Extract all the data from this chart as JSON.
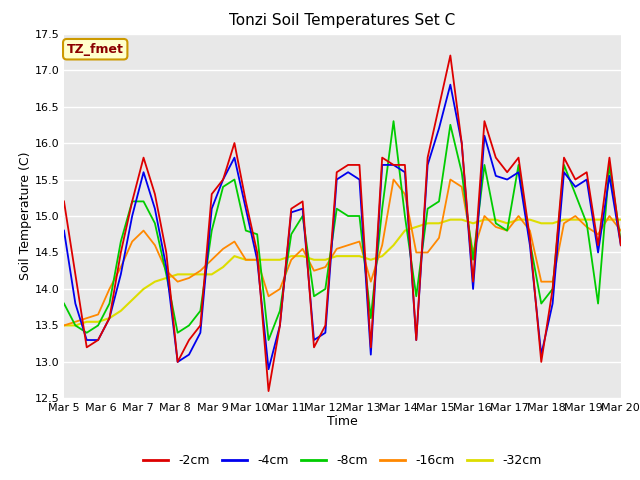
{
  "title": "Tonzi Soil Temperatures Set C",
  "xlabel": "Time",
  "ylabel": "Soil Temperature (C)",
  "ylim": [
    12.5,
    17.5
  ],
  "plot_bg_color": "#e8e8e8",
  "fig_bg_color": "#ffffff",
  "legend_label": "TZ_fmet",
  "legend_bg": "#ffffcc",
  "legend_border": "#cc9900",
  "series_colors": {
    "-2cm": "#dd0000",
    "-4cm": "#0000ee",
    "-8cm": "#00cc00",
    "-16cm": "#ff8800",
    "-32cm": "#dddd00"
  },
  "x_ticks": [
    "Mar 5",
    "Mar 6",
    "Mar 7",
    "Mar 8",
    "Mar 9",
    "Mar 10",
    "Mar 11",
    "Mar 12",
    "Mar 13",
    "Mar 14",
    "Mar 15",
    "Mar 16",
    "Mar 17",
    "Mar 18",
    "Mar 19",
    "Mar 20"
  ],
  "t_2cm": [
    15.2,
    14.2,
    13.2,
    13.3,
    13.6,
    14.5,
    15.2,
    15.8,
    15.3,
    14.5,
    13.0,
    13.3,
    13.5,
    15.3,
    15.5,
    16.0,
    15.2,
    14.5,
    12.6,
    13.5,
    15.1,
    15.2,
    13.2,
    13.5,
    15.6,
    15.7,
    15.7,
    13.2,
    15.8,
    15.7,
    15.7,
    13.3,
    15.8,
    16.5,
    17.2,
    16.0,
    14.1,
    16.3,
    15.8,
    15.6,
    15.8,
    14.7,
    13.0,
    14.0,
    15.8,
    15.5,
    15.6,
    14.6,
    15.8,
    14.6
  ],
  "t_4cm": [
    14.8,
    13.8,
    13.3,
    13.3,
    13.6,
    14.2,
    15.0,
    15.6,
    15.1,
    14.3,
    13.0,
    13.1,
    13.4,
    15.1,
    15.5,
    15.8,
    15.1,
    14.4,
    12.9,
    13.5,
    15.05,
    15.1,
    13.3,
    13.4,
    15.5,
    15.6,
    15.5,
    13.1,
    15.7,
    15.7,
    15.6,
    13.3,
    15.7,
    16.2,
    16.8,
    16.0,
    14.0,
    16.1,
    15.55,
    15.5,
    15.6,
    14.6,
    13.1,
    13.8,
    15.6,
    15.4,
    15.5,
    14.5,
    15.55,
    14.6
  ],
  "t_8cm": [
    13.8,
    13.5,
    13.4,
    13.5,
    13.8,
    14.65,
    15.2,
    15.2,
    14.9,
    14.2,
    13.4,
    13.5,
    13.7,
    14.8,
    15.4,
    15.5,
    14.8,
    14.75,
    13.3,
    13.7,
    14.75,
    15.0,
    13.9,
    14.0,
    15.1,
    15.0,
    15.0,
    13.6,
    15.1,
    16.3,
    15.0,
    13.9,
    15.1,
    15.2,
    16.25,
    15.6,
    14.4,
    15.7,
    14.9,
    14.8,
    15.7,
    14.65,
    13.8,
    14.0,
    15.7,
    15.3,
    14.9,
    13.8,
    15.7,
    14.65
  ],
  "t_16cm": [
    13.5,
    13.55,
    13.6,
    13.65,
    14.0,
    14.3,
    14.65,
    14.8,
    14.6,
    14.25,
    14.1,
    14.15,
    14.25,
    14.4,
    14.55,
    14.65,
    14.4,
    14.4,
    13.9,
    14.0,
    14.4,
    14.55,
    14.25,
    14.3,
    14.55,
    14.6,
    14.65,
    14.1,
    14.6,
    15.5,
    15.3,
    14.5,
    14.5,
    14.7,
    15.5,
    15.4,
    14.5,
    15.0,
    14.85,
    14.8,
    15.0,
    14.8,
    14.1,
    14.1,
    14.9,
    15.0,
    14.85,
    14.75,
    15.0,
    14.8
  ],
  "t_32cm": [
    13.5,
    13.5,
    13.55,
    13.55,
    13.6,
    13.7,
    13.85,
    14.0,
    14.1,
    14.15,
    14.2,
    14.2,
    14.2,
    14.2,
    14.3,
    14.45,
    14.4,
    14.4,
    14.4,
    14.4,
    14.45,
    14.45,
    14.4,
    14.4,
    14.45,
    14.45,
    14.45,
    14.4,
    14.45,
    14.6,
    14.8,
    14.85,
    14.9,
    14.9,
    14.95,
    14.95,
    14.9,
    14.95,
    14.95,
    14.9,
    14.95,
    14.95,
    14.9,
    14.9,
    14.95,
    14.95,
    14.95,
    14.95,
    14.95,
    14.95
  ]
}
